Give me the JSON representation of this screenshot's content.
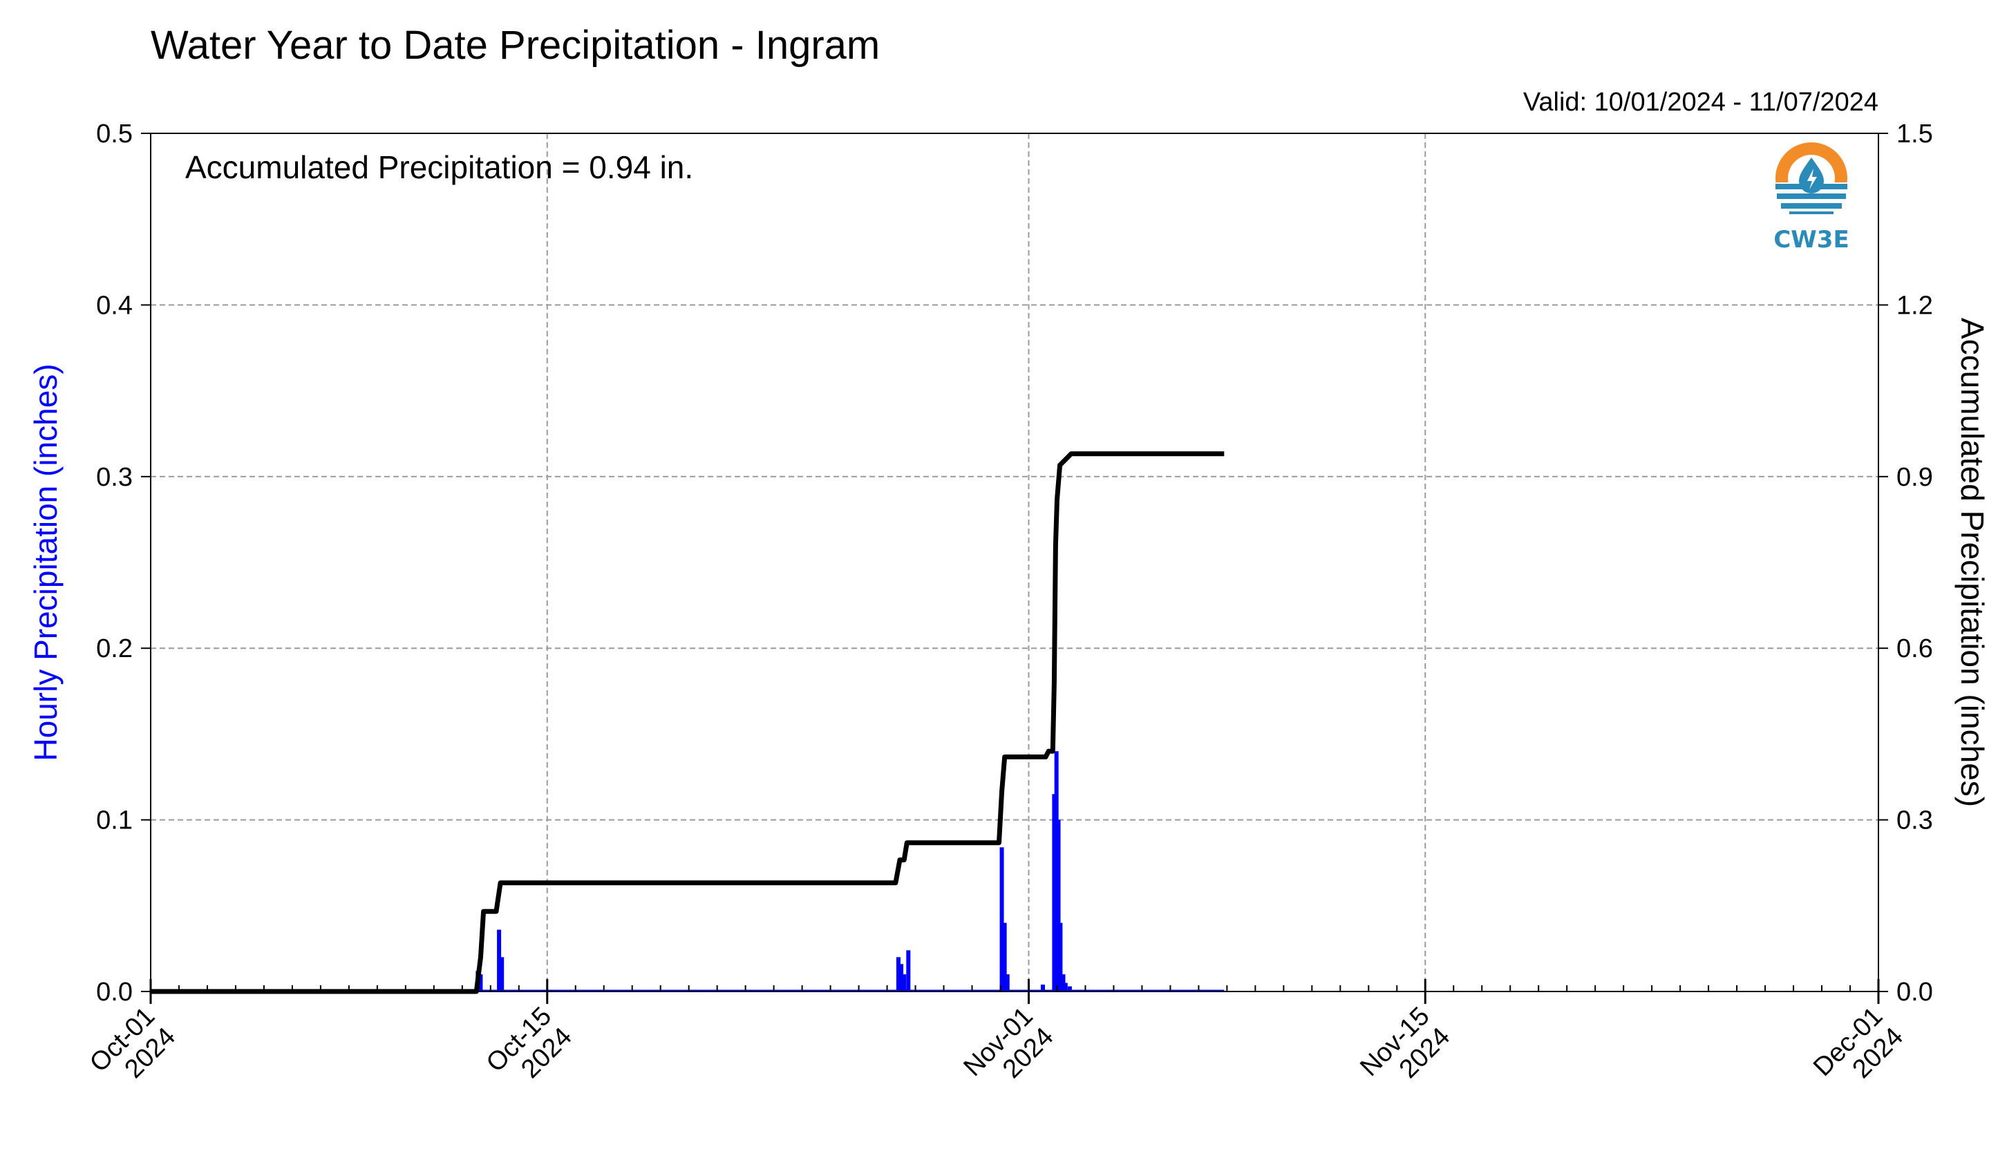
{
  "chart_data": {
    "type": "bar+line",
    "title": "Water Year to Date Precipitation - Ingram",
    "valid_text": "Valid: 10/01/2024 - 11/07/2024",
    "annotation": "Accumulated Precipitation = 0.94 in.",
    "left_axis": {
      "label": "Hourly Precipitation (inches)",
      "ylim": [
        0,
        0.5
      ],
      "ticks": [
        "0.0",
        "0.1",
        "0.2",
        "0.3",
        "0.4",
        "0.5"
      ],
      "color": "#0000ff"
    },
    "right_axis": {
      "label": "Accumulated Precipitation (inches)",
      "ylim": [
        0,
        1.5
      ],
      "ticks": [
        "0.0",
        "0.3",
        "0.6",
        "0.9",
        "1.2",
        "1.5"
      ],
      "color": "#000000"
    },
    "x_axis": {
      "xlim_days": [
        0,
        61
      ],
      "major_ticks": [
        {
          "day": 0,
          "line1": "Oct-01",
          "line2": "2024"
        },
        {
          "day": 14,
          "line1": "Oct-15",
          "line2": "2024"
        },
        {
          "day": 31,
          "line1": "Nov-01",
          "line2": "2024"
        },
        {
          "day": 45,
          "line1": "Nov-15",
          "line2": "2024"
        },
        {
          "day": 61,
          "line1": "Dec-01",
          "line2": "2024"
        }
      ],
      "minor_tick_days": 1
    },
    "grid": true,
    "hourly_bars": {
      "name": "Hourly Precipitation",
      "color": "#0000ff",
      "points": [
        {
          "day": 11.55,
          "value": 0.012
        },
        {
          "day": 11.65,
          "value": 0.01
        },
        {
          "day": 12.3,
          "value": 0.036
        },
        {
          "day": 12.4,
          "value": 0.02
        },
        {
          "day": 26.4,
          "value": 0.02
        },
        {
          "day": 26.5,
          "value": 0.016
        },
        {
          "day": 26.6,
          "value": 0.01
        },
        {
          "day": 26.75,
          "value": 0.024
        },
        {
          "day": 30.05,
          "value": 0.084
        },
        {
          "day": 30.15,
          "value": 0.04
        },
        {
          "day": 30.25,
          "value": 0.01
        },
        {
          "day": 31.5,
          "value": 0.004
        },
        {
          "day": 31.9,
          "value": 0.115
        },
        {
          "day": 31.98,
          "value": 0.14
        },
        {
          "day": 32.05,
          "value": 0.1
        },
        {
          "day": 32.12,
          "value": 0.04
        },
        {
          "day": 32.22,
          "value": 0.01
        },
        {
          "day": 32.3,
          "value": 0.005
        },
        {
          "day": 32.45,
          "value": 0.003
        }
      ],
      "zero_trace_end_day": 37.9
    },
    "accumulated_line": {
      "name": "Accumulated Precipitation",
      "color": "#000000",
      "points": [
        {
          "day": 0,
          "value": 0
        },
        {
          "day": 11.5,
          "value": 0
        },
        {
          "day": 11.65,
          "value": 0.06
        },
        {
          "day": 11.75,
          "value": 0.14
        },
        {
          "day": 12.2,
          "value": 0.14
        },
        {
          "day": 12.35,
          "value": 0.19
        },
        {
          "day": 26.3,
          "value": 0.19
        },
        {
          "day": 26.45,
          "value": 0.23
        },
        {
          "day": 26.6,
          "value": 0.23
        },
        {
          "day": 26.7,
          "value": 0.26
        },
        {
          "day": 29.95,
          "value": 0.26
        },
        {
          "day": 30.05,
          "value": 0.35
        },
        {
          "day": 30.15,
          "value": 0.41
        },
        {
          "day": 31.6,
          "value": 0.41
        },
        {
          "day": 31.7,
          "value": 0.42
        },
        {
          "day": 31.85,
          "value": 0.42
        },
        {
          "day": 31.9,
          "value": 0.54
        },
        {
          "day": 31.95,
          "value": 0.78
        },
        {
          "day": 32.0,
          "value": 0.86
        },
        {
          "day": 32.1,
          "value": 0.92
        },
        {
          "day": 32.3,
          "value": 0.93
        },
        {
          "day": 32.5,
          "value": 0.94
        },
        {
          "day": 37.9,
          "value": 0.94
        }
      ]
    }
  },
  "logo": {
    "text": "CW3E",
    "icon": "cw3e-drop-logo-icon",
    "orange": "#f28c28",
    "blue": "#2a8ab8"
  }
}
